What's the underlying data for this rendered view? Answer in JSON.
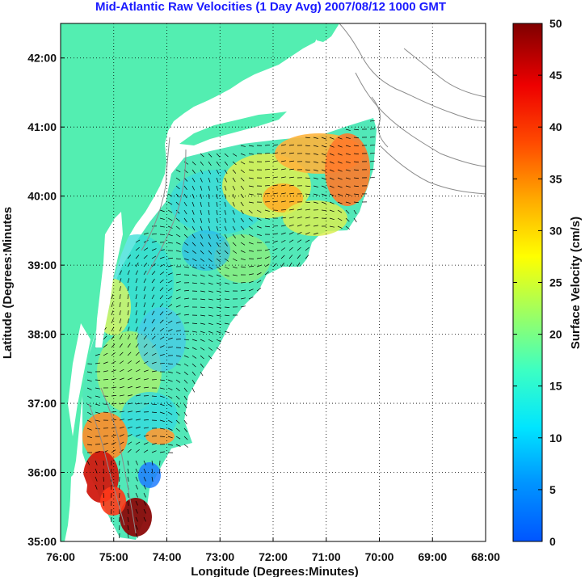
{
  "title": "Mid-Atlantic Raw Velocities (1 Day Avg) 2007/08/12 1000 GMT",
  "colors": {
    "land": "#53eeb1",
    "coast_outline": "#8c8c8c",
    "title": "#1a1aff",
    "arrow": "#000000"
  },
  "map": {
    "x_ticks": [
      "76:00",
      "75:00",
      "74:00",
      "73:00",
      "72:00",
      "71:00",
      "70:00",
      "69:00",
      "68:00"
    ],
    "y_ticks": [
      "35:00",
      "36:00",
      "37:00",
      "38:00",
      "39:00",
      "40:00",
      "41:00",
      "42:00"
    ],
    "x_label": "Longitude (Degrees:Minutes)",
    "y_label": "Latitude (Degrees:Minutes",
    "lon_range": [
      -76,
      -68
    ],
    "lat_range": [
      35,
      42.5
    ],
    "grid": "dotted"
  },
  "colorbar": {
    "ticks": [
      "0",
      "5",
      "10",
      "15",
      "20",
      "25",
      "30",
      "35",
      "40",
      "45",
      "50"
    ],
    "label": "Surface Velocity (cm/s)",
    "range": [
      0,
      50
    ],
    "colormap": "jet"
  }
}
